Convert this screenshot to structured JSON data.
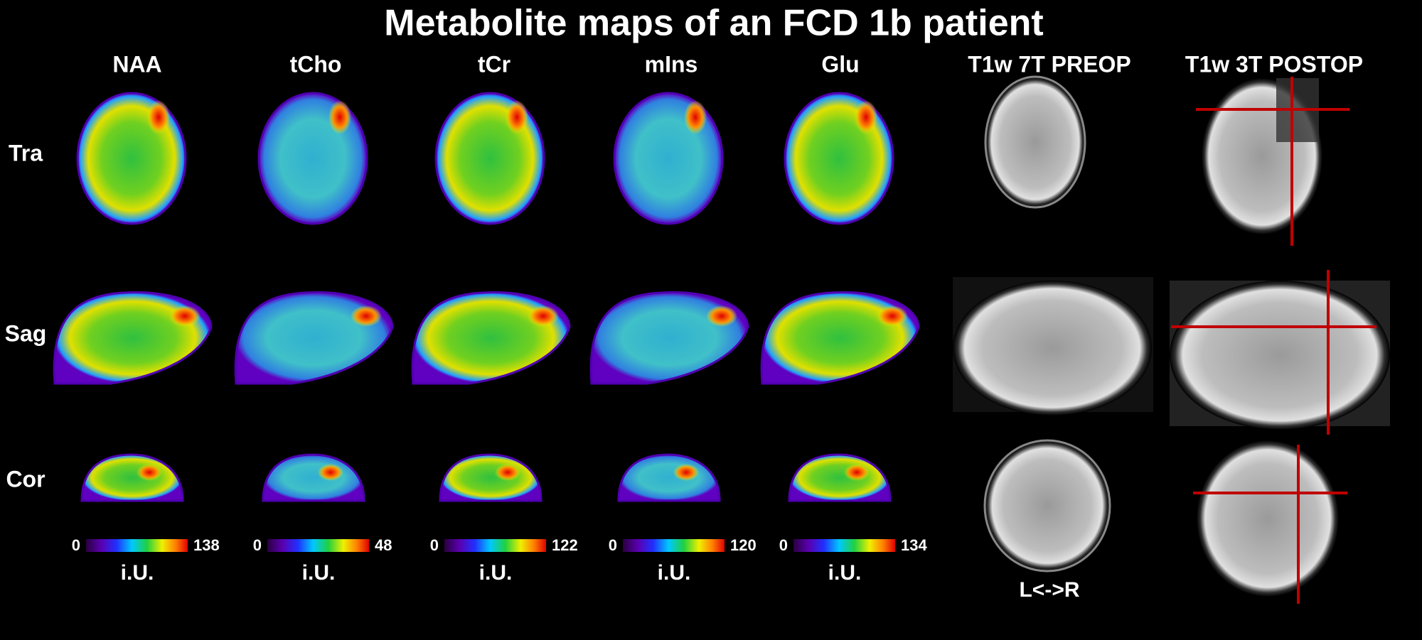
{
  "title": "Metabolite maps of an FCD 1b patient",
  "rows": [
    "Tra",
    "Sag",
    "Cor"
  ],
  "metabolites": [
    {
      "name": "NAA",
      "min": 0,
      "max": 138,
      "unit": "i.U."
    },
    {
      "name": "tCho",
      "min": 0,
      "max": 48,
      "unit": "i.U."
    },
    {
      "name": "tCr",
      "min": 0,
      "max": 122,
      "unit": "i.U."
    },
    {
      "name": "mIns",
      "min": 0,
      "max": 120,
      "unit": "i.U."
    },
    {
      "name": "Glu",
      "min": 0,
      "max": 134,
      "unit": "i.U."
    }
  ],
  "anatomy": [
    {
      "name": "T1w 7T PREOP",
      "note": "L<->R"
    },
    {
      "name": "T1w 3T POSTOP"
    }
  ]
}
